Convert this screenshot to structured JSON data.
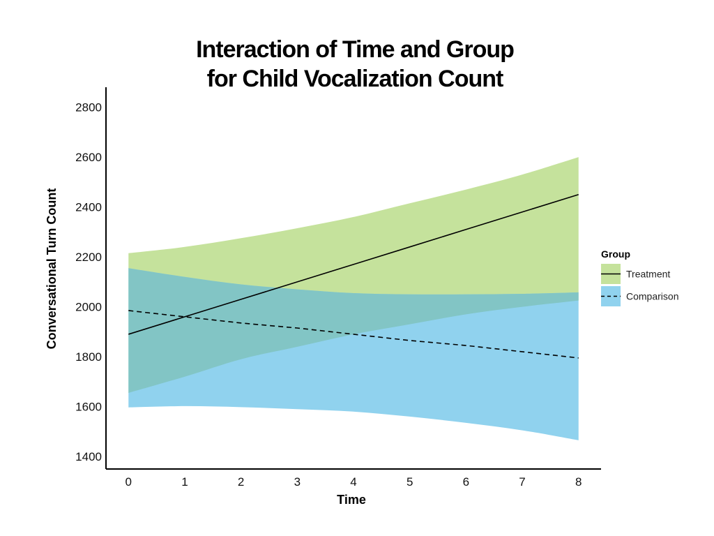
{
  "chart_data": {
    "type": "line",
    "title_lines": [
      "Interaction of Time and Group",
      "for Child Vocalization Count"
    ],
    "xlabel": "Time",
    "ylabel": "Conversational Turn Count",
    "xlim": [
      -0.4,
      8.4
    ],
    "ylim": [
      1350,
      2880
    ],
    "x_ticks": [
      0,
      1,
      2,
      3,
      4,
      5,
      6,
      7,
      8
    ],
    "y_ticks": [
      1400,
      1600,
      1800,
      2000,
      2200,
      2400,
      2600,
      2800
    ],
    "grid": false,
    "legend": {
      "title": "Group",
      "placement": "right"
    },
    "series": [
      {
        "name": "Treatment",
        "line_style": "solid",
        "fill_color": "#c5e29c",
        "line_color": "#000000",
        "x": [
          0,
          1,
          2,
          3,
          4,
          5,
          6,
          7,
          8
        ],
        "values": [
          1890,
          1960,
          2030,
          2100,
          2170,
          2240,
          2310,
          2380,
          2450
        ],
        "ci_upper": [
          2215,
          2240,
          2275,
          2315,
          2360,
          2415,
          2470,
          2530,
          2600
        ],
        "ci_lower": [
          1655,
          1720,
          1790,
          1840,
          1890,
          1930,
          1970,
          2000,
          2025
        ]
      },
      {
        "name": "Comparison",
        "line_style": "dashed",
        "fill_color": "#90d2ee",
        "line_color": "#000000",
        "x": [
          0,
          1,
          2,
          3,
          4,
          5,
          6,
          7,
          8
        ],
        "values": [
          1985,
          1960,
          1935,
          1915,
          1890,
          1865,
          1845,
          1820,
          1795
        ],
        "ci_upper": [
          2155,
          2120,
          2090,
          2070,
          2055,
          2050,
          2050,
          2052,
          2058
        ],
        "ci_lower": [
          1597,
          1602,
          1598,
          1590,
          1580,
          1560,
          1535,
          1505,
          1465
        ]
      }
    ],
    "overlap_color": "#82c5c5"
  }
}
